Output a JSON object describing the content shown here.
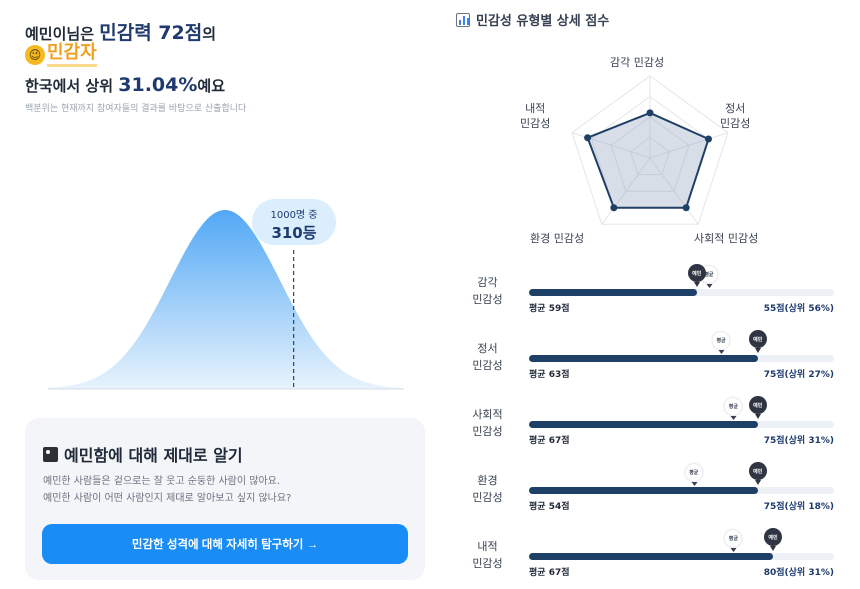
{
  "result": {
    "headline_prefix": "예민이님은 ",
    "headline_score": "민감력 72점",
    "headline_suffix": "의",
    "type_emoji": "😉",
    "type_name": "민감자",
    "rank_prefix": "한국에서 상위 ",
    "rank_percent": "31.04%",
    "rank_suffix": "예요",
    "note": "백분위는 현재까지 참여자들의 결과를 바탕으로 산출합니다",
    "bubble_small": "1000명 중",
    "bubble_big": "310등",
    "percentile_position": 0.69
  },
  "info_card": {
    "title": "예민함에 대해 제대로 알기",
    "desc_line1": "예민한 사람들은 겉으로는 잘 웃고 순둥한 사람이 많아요.",
    "desc_line2": "예민한 사람이 어떤 사람인지 제대로 알아보고 싶지 않나요?",
    "cta_label": "민감한 성격에 대해 자세히 탐구하기 →"
  },
  "detail": {
    "title": "민감성 유형별 상세 점수",
    "radar_labels": {
      "top": "감각 민감성",
      "right_1": "정서",
      "right_2": "민감성",
      "bottom_right": "사회적 민감성",
      "bottom_left": "환경 민감성",
      "left_1": "내적",
      "left_2": "민감성"
    },
    "marker_me": "예민",
    "marker_avg": "평균",
    "rows": [
      {
        "label_1": "감각",
        "label_2": "민감성",
        "me": 55,
        "avg": 59,
        "avg_text": "평균 59점",
        "score_text": "55점(상위 56%)"
      },
      {
        "label_1": "정서",
        "label_2": "민감성",
        "me": 75,
        "avg": 63,
        "avg_text": "평균 63점",
        "score_text": "75점(상위 27%)"
      },
      {
        "label_1": "사회적",
        "label_2": "민감성",
        "me": 75,
        "avg": 67,
        "avg_text": "평균 67점",
        "score_text": "75점(상위 31%)"
      },
      {
        "label_1": "환경",
        "label_2": "민감성",
        "me": 75,
        "avg": 54,
        "avg_text": "평균 54점",
        "score_text": "75점(상위 18%)"
      },
      {
        "label_1": "내적",
        "label_2": "민감성",
        "me": 80,
        "avg": 67,
        "avg_text": "평균 67점",
        "score_text": "80점(상위 31%)"
      }
    ]
  },
  "colors": {
    "brand_navy": "#1e3a6e",
    "bar_fill": "#1e3f66",
    "cta_blue": "#1a8cf5",
    "type_orange": "#f0a020"
  }
}
